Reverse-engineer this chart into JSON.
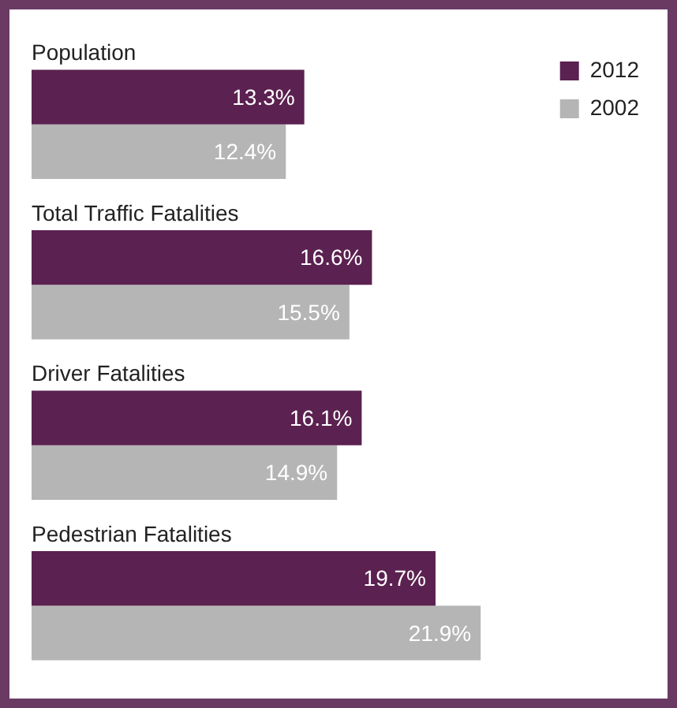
{
  "chart_data": {
    "type": "bar",
    "orientation": "horizontal",
    "categories": [
      "Population",
      "Total Traffic Fatalities",
      "Driver Fatalities",
      "Pedestrian Fatalities"
    ],
    "series": [
      {
        "name": "2012",
        "color": "#5b2150",
        "values": [
          13.3,
          16.6,
          16.1,
          19.7
        ],
        "value_labels": [
          "13.3%",
          "16.6%",
          "16.1%",
          "19.7%"
        ]
      },
      {
        "name": "2002",
        "color": "#b5b5b5",
        "values": [
          12.4,
          15.5,
          14.9,
          21.9
        ],
        "value_labels": [
          "12.4%",
          "15.5%",
          "14.9%",
          "21.9%"
        ]
      }
    ],
    "tick_labels": false,
    "legend": "top right"
  }
}
